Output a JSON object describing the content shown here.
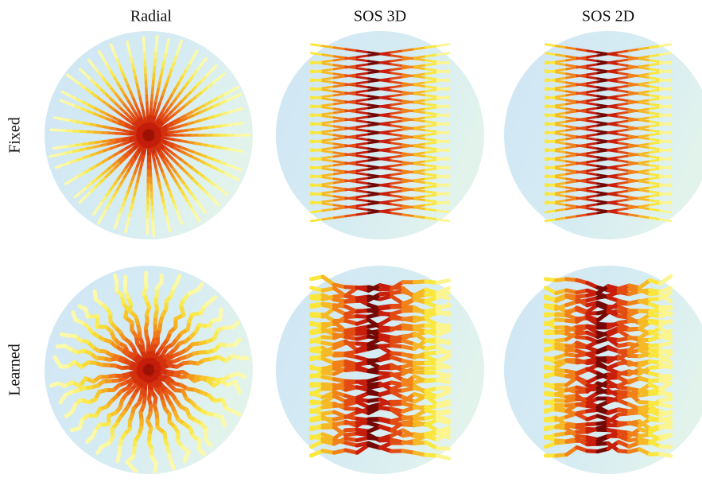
{
  "columns": [
    "Radial",
    "SOS 3D",
    "SOS 2D"
  ],
  "rows": [
    "Fixed",
    "Learned"
  ]
}
